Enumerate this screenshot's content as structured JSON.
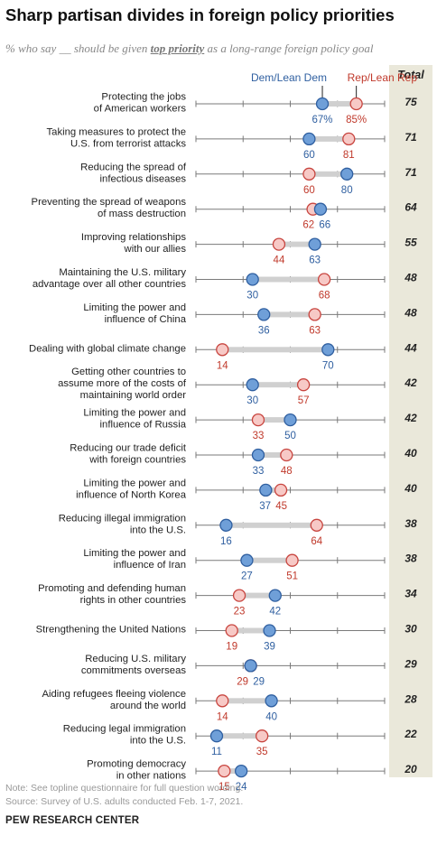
{
  "title": "Sharp partisan divides in foreign policy priorities",
  "subtitle": {
    "before": "% who say __ should be given ",
    "highlight": "top priority",
    "after": " as a long-range foreign policy goal"
  },
  "total_label": "Total",
  "note": "Note: See topline questionnaire for full question wording.",
  "source": "Source: Survey of U.S. adults conducted Feb. 1-7, 2021.",
  "brand": "PEW RESEARCH CENTER",
  "colors": {
    "dem_fill": "#6f9fd8",
    "dem_stroke": "#2f5fa0",
    "dem_text": "#2f5fa0",
    "rep_fill": "#f7c9c6",
    "rep_stroke": "#c8453f",
    "rep_text": "#c0392b",
    "axis": "#7a7a7a",
    "connector": "#d0d0d0"
  },
  "chart_data": {
    "type": "dot",
    "xlim": [
      0,
      100
    ],
    "series": [
      {
        "name": "Dem/Lean Dem",
        "key": "dem"
      },
      {
        "name": "Rep/Lean Rep",
        "key": "rep"
      }
    ],
    "legend": {
      "dem": "Dem/Lean Dem",
      "rep": "Rep/Lean Rep"
    },
    "first_row_value_suffix": "%",
    "rows": [
      {
        "label": [
          "Protecting the jobs",
          "of American workers"
        ],
        "dem": 67,
        "rep": 85,
        "total": 75
      },
      {
        "label": [
          "Taking measures to protect the",
          "U.S. from terrorist attacks"
        ],
        "dem": 60,
        "rep": 81,
        "total": 71
      },
      {
        "label": [
          "Reducing the spread of",
          "infectious diseases"
        ],
        "dem": 80,
        "rep": 60,
        "total": 71
      },
      {
        "label": [
          "Preventing the spread of weapons",
          "of mass destruction"
        ],
        "dem": 66,
        "rep": 62,
        "total": 64
      },
      {
        "label": [
          "Improving relationships",
          "with our allies"
        ],
        "dem": 63,
        "rep": 44,
        "total": 55
      },
      {
        "label": [
          "Maintaining the U.S. military",
          "advantage over all other countries"
        ],
        "dem": 30,
        "rep": 68,
        "total": 48
      },
      {
        "label": [
          "Limiting the power and",
          "influence of China"
        ],
        "dem": 36,
        "rep": 63,
        "total": 48
      },
      {
        "label": [
          "Dealing with global climate change"
        ],
        "dem": 70,
        "rep": 14,
        "total": 44
      },
      {
        "label": [
          "Getting other countries to",
          "assume more of the costs of",
          "maintaining world order"
        ],
        "dem": 30,
        "rep": 57,
        "total": 42
      },
      {
        "label": [
          "Limiting the power and",
          "influence of Russia"
        ],
        "dem": 50,
        "rep": 33,
        "total": 42
      },
      {
        "label": [
          "Reducing our trade deficit",
          "with foreign countries"
        ],
        "dem": 33,
        "rep": 48,
        "total": 40
      },
      {
        "label": [
          "Limiting the power and",
          "influence of North Korea"
        ],
        "dem": 37,
        "rep": 45,
        "total": 40
      },
      {
        "label": [
          "Reducing illegal immigration",
          "into the U.S."
        ],
        "dem": 16,
        "rep": 64,
        "total": 38
      },
      {
        "label": [
          "Limiting the power and",
          "influence of Iran"
        ],
        "dem": 27,
        "rep": 51,
        "total": 38
      },
      {
        "label": [
          "Promoting and defending human",
          "rights in other countries"
        ],
        "dem": 42,
        "rep": 23,
        "total": 34
      },
      {
        "label": [
          "Strengthening the United Nations"
        ],
        "dem": 39,
        "rep": 19,
        "total": 30
      },
      {
        "label": [
          "Reducing U.S. military",
          "commitments overseas"
        ],
        "dem": 29,
        "rep": 29,
        "total": 29
      },
      {
        "label": [
          "Aiding refugees fleeing violence",
          "around the world"
        ],
        "dem": 40,
        "rep": 14,
        "total": 28
      },
      {
        "label": [
          "Reducing legal immigration",
          "into the U.S."
        ],
        "dem": 11,
        "rep": 35,
        "total": 22
      },
      {
        "label": [
          "Promoting democracy",
          "in other nations"
        ],
        "dem": 24,
        "rep": 15,
        "total": 20
      }
    ]
  }
}
